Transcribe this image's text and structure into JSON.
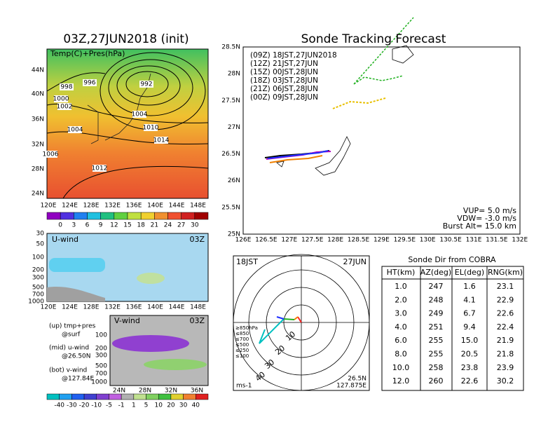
{
  "map_panel": {
    "title": "03Z,27JUN2018 (init)",
    "label": "Temp(C)+Pres(hPa)",
    "lat_labels": [
      "44N",
      "40N",
      "36N",
      "32N",
      "28N",
      "24N"
    ],
    "lon_labels": [
      "120E",
      "124E",
      "128E",
      "132E",
      "136E",
      "140E",
      "144E",
      "148E"
    ],
    "colorbar_labels": [
      "0",
      "3",
      "6",
      "9",
      "12",
      "15",
      "18",
      "21",
      "24",
      "27",
      "30"
    ],
    "contour_labels": [
      "996",
      "998",
      "1000",
      "1002",
      "1004",
      "992",
      "1004",
      "1010",
      "1014",
      "1012",
      "1006"
    ]
  },
  "u_wind_panel": {
    "label": "U-wind",
    "time": "03Z",
    "pressure_labels": [
      "30",
      "50",
      "100",
      "200",
      "300",
      "500",
      "700",
      "1000"
    ],
    "lon_labels": [
      "120E",
      "124E",
      "128E",
      "132E",
      "136E",
      "140E",
      "144E",
      "148E"
    ]
  },
  "notes": [
    "(up) tmp+pres",
    "@surf",
    "(mid) u-wind",
    "@26.50N",
    "(bot) v-wind",
    "@127.84E"
  ],
  "v_wind_panel": {
    "label": "V-wind",
    "time": "03Z",
    "pressure_labels": [
      "100",
      "200",
      "300",
      "500",
      "700",
      "1000"
    ],
    "lat_labels": [
      "24N",
      "28N",
      "32N",
      "36N"
    ]
  },
  "wind_colorbar_labels": [
    "-40",
    "-30",
    "-20",
    "-10",
    "-5",
    "-1",
    "1",
    "5",
    "10",
    "20",
    "30",
    "40"
  ],
  "track_panel": {
    "title": "Sonde Tracking Forecast",
    "lat_labels": [
      "28.5N",
      "28N",
      "27.5N",
      "27N",
      "26.5N",
      "26N",
      "25.5N",
      "25N"
    ],
    "lon_labels": [
      "126E",
      "126.5E",
      "127E",
      "127.5E",
      "128E",
      "128.5E",
      "129E",
      "129.5E",
      "130E",
      "130.5E",
      "131E",
      "131.5E",
      "132E"
    ],
    "legend": [
      {
        "text": "(09Z) 18JST,27JUN2018",
        "color": "#000000"
      },
      {
        "text": "(12Z) 21JST,27JUN",
        "color": "#b000c0"
      },
      {
        "text": "(15Z) 00JST,28JUN",
        "color": "#2030ff"
      },
      {
        "text": "(18Z) 03JST,28JUN",
        "color": "#20b020"
      },
      {
        "text": "(21Z) 06JST,28JUN",
        "color": "#e8c000"
      },
      {
        "text": "(00Z) 09JST,28JUN",
        "color": "#f08000"
      }
    ],
    "parameters": [
      "VUP= 5.0 m/s",
      "VDW= -3.0 m/s",
      "Burst Alt= 15.0 km"
    ]
  },
  "polar_panel": {
    "time": "18JST",
    "date": "27JUN",
    "lat": "26.5N",
    "lon": "127.875E",
    "unit": "ms-1",
    "ring_labels": [
      "10",
      "20",
      "30",
      "40"
    ],
    "legend": [
      {
        "text": "≥850hPa",
        "color": "#ff2020"
      },
      {
        "text": "≤850",
        "color": "#f08000"
      },
      {
        "text": "≤700",
        "color": "#e8c000"
      },
      {
        "text": "≤500",
        "color": "#20b020"
      },
      {
        "text": "≤250",
        "color": "#00c0c0"
      },
      {
        "text": "≤100",
        "color": "#2030ff"
      }
    ]
  },
  "table": {
    "title": "Sonde Dir from COBRA",
    "header": [
      "HT(km)",
      "AZ(deg)",
      "EL(deg)",
      "RNG(km)"
    ],
    "rows": [
      [
        "1.0",
        "247",
        "1.6",
        "23.1"
      ],
      [
        "2.0",
        "248",
        "4.1",
        "22.9"
      ],
      [
        "3.0",
        "249",
        "6.7",
        "22.6"
      ],
      [
        "4.0",
        "251",
        "9.4",
        "22.4"
      ],
      [
        "6.0",
        "255",
        "15.0",
        "21.9"
      ],
      [
        "8.0",
        "255",
        "20.5",
        "21.8"
      ],
      [
        "10.0",
        "258",
        "23.8",
        "23.9"
      ],
      [
        "12.0",
        "260",
        "22.6",
        "30.2"
      ]
    ]
  }
}
